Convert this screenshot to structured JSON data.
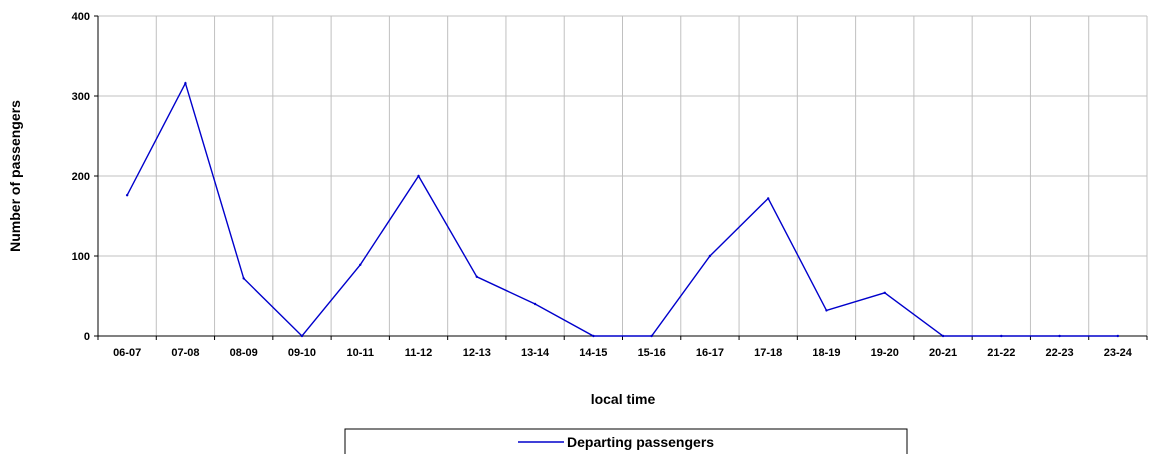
{
  "chart_data": {
    "type": "line",
    "title": "",
    "xlabel": "local time",
    "ylabel": "Number of passengers",
    "categories": [
      "06-07",
      "07-08",
      "08-09",
      "09-10",
      "10-11",
      "11-12",
      "12-13",
      "13-14",
      "14-15",
      "15-16",
      "16-17",
      "17-18",
      "18-19",
      "19-20",
      "20-21",
      "21-22",
      "22-23",
      "23-24"
    ],
    "series": [
      {
        "name": "Departing passengers",
        "color": "#0000cc",
        "values": [
          176,
          316,
          72,
          0,
          89,
          200,
          74,
          40,
          0,
          0,
          100,
          172,
          32,
          54,
          0,
          0,
          0,
          0
        ]
      }
    ],
    "ylim": [
      0,
      400
    ],
    "yticks": [
      0,
      100,
      200,
      300,
      400
    ],
    "grid": true,
    "legend_position": "bottom-center",
    "colors": {
      "grid": "#c0c0c0",
      "axis": "#000000"
    }
  }
}
